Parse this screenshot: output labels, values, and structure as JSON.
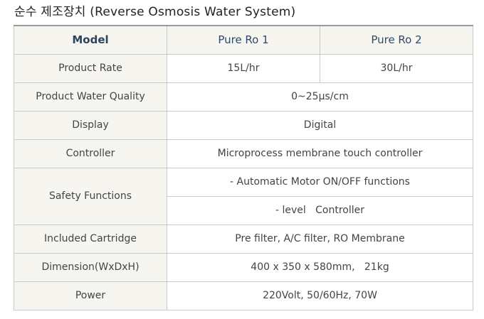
{
  "title": "순수 제조장치 (Reverse Osmosis Water System)",
  "header": {
    "model": "Model",
    "col1": "Pure Ro 1",
    "col2": "Pure Ro 2"
  },
  "rows": {
    "product_rate": {
      "label": "Product Rate",
      "v1": "15L/hr",
      "v2": "30L/hr"
    },
    "water_quality": {
      "label": "Product Water Quality",
      "value": "0~25μs/cm"
    },
    "display": {
      "label": "Display",
      "value": "Digital"
    },
    "controller": {
      "label": "Controller",
      "value": "Microprocess membrane touch controller"
    },
    "safety": {
      "label": "Safety Functions",
      "value1": "- Automatic Motor ON/OFF functions",
      "value2": "- level   Controller"
    },
    "cartridge": {
      "label": "Included Cartridge",
      "value": "Pre filter, A/C filter, RO Membrane"
    },
    "dimension": {
      "label": "Dimension(WxDxH)",
      "value": "400 x 350 x 580mm,   21kg"
    },
    "power": {
      "label": "Power",
      "value": "220Volt, 50/60Hz, 70W"
    }
  }
}
